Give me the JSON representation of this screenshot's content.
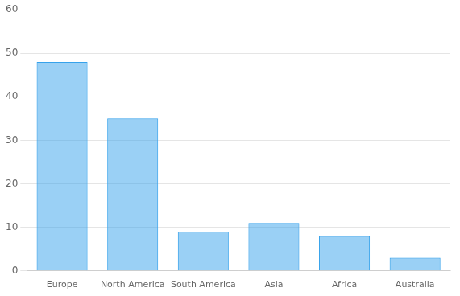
{
  "chart_data": {
    "type": "bar",
    "categories": [
      "Europe",
      "North America",
      "South America",
      "Asia",
      "Africa",
      "Australia"
    ],
    "values": [
      48,
      35,
      9,
      11,
      8,
      3
    ],
    "ylim": [
      0,
      60
    ],
    "yticks": [
      0,
      10,
      20,
      30,
      40,
      50,
      60
    ],
    "grid": true
  }
}
